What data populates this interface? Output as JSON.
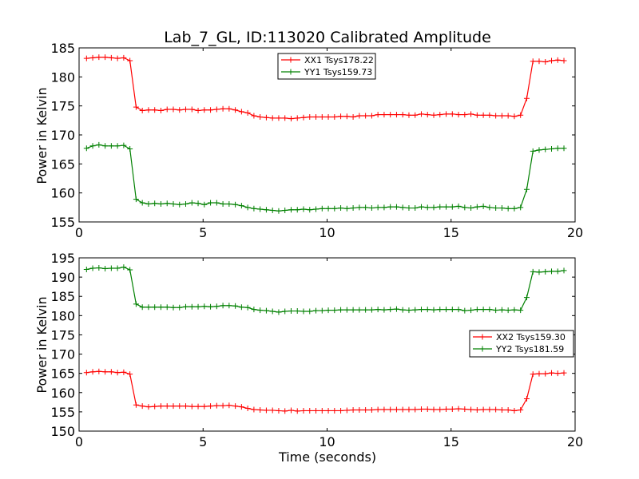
{
  "chart_data": {
    "title": "Lab_7_GL, ID:113020 Calibrated Amplitude",
    "xlabel": "Time (seconds)",
    "panels": [
      {
        "type": "line",
        "ylabel": "Power in Kelvin",
        "xlim": [
          0,
          20
        ],
        "ylim": [
          155,
          185
        ],
        "xticks": [
          "0",
          "5",
          "10",
          "15",
          "20"
        ],
        "yticks": [
          "155",
          "160",
          "165",
          "170",
          "175",
          "180",
          "185"
        ],
        "legend_position": "upper-center",
        "x": [
          0.3,
          0.55,
          0.8,
          1.05,
          1.3,
          1.55,
          1.8,
          2.05,
          2.3,
          2.55,
          2.8,
          3.05,
          3.3,
          3.55,
          3.8,
          4.05,
          4.3,
          4.55,
          4.8,
          5.05,
          5.3,
          5.55,
          5.8,
          6.05,
          6.3,
          6.55,
          6.8,
          7.05,
          7.3,
          7.55,
          7.8,
          8.05,
          8.3,
          8.55,
          8.8,
          9.05,
          9.3,
          9.55,
          9.8,
          10.05,
          10.3,
          10.55,
          10.8,
          11.05,
          11.3,
          11.55,
          11.8,
          12.05,
          12.3,
          12.55,
          12.8,
          13.05,
          13.3,
          13.55,
          13.8,
          14.05,
          14.3,
          14.55,
          14.8,
          15.05,
          15.3,
          15.55,
          15.8,
          16.05,
          16.3,
          16.55,
          16.8,
          17.05,
          17.3,
          17.55,
          17.8,
          18.05,
          18.3,
          18.55,
          18.8,
          19.05,
          19.3,
          19.55
        ],
        "series": [
          {
            "name": "XX1 Tsys178.22",
            "color": "#ff0000",
            "values": [
              183.2,
              183.3,
              183.4,
              183.4,
              183.3,
              183.2,
              183.3,
              182.8,
              174.8,
              174.2,
              174.3,
              174.3,
              174.2,
              174.4,
              174.4,
              174.3,
              174.4,
              174.4,
              174.2,
              174.3,
              174.3,
              174.4,
              174.5,
              174.5,
              174.3,
              174.0,
              173.8,
              173.3,
              173.1,
              173.0,
              172.9,
              172.9,
              172.9,
              172.8,
              172.9,
              173.0,
              173.1,
              173.1,
              173.1,
              173.1,
              173.1,
              173.2,
              173.2,
              173.1,
              173.3,
              173.3,
              173.3,
              173.5,
              173.5,
              173.5,
              173.5,
              173.5,
              173.4,
              173.4,
              173.6,
              173.5,
              173.4,
              173.5,
              173.6,
              173.6,
              173.5,
              173.5,
              173.6,
              173.4,
              173.4,
              173.4,
              173.3,
              173.3,
              173.3,
              173.2,
              173.4,
              176.3,
              182.7,
              182.7,
              182.6,
              182.8,
              182.9,
              182.8
            ]
          },
          {
            "name": "YY1 Tsys159.73",
            "color": "#008000",
            "values": [
              167.7,
              168.1,
              168.3,
              168.1,
              168.1,
              168.1,
              168.2,
              167.6,
              158.9,
              158.3,
              158.1,
              158.2,
              158.1,
              158.2,
              158.1,
              158.0,
              158.1,
              158.3,
              158.2,
              158.0,
              158.3,
              158.3,
              158.1,
              158.1,
              158.0,
              157.8,
              157.5,
              157.3,
              157.2,
              157.1,
              157.0,
              156.9,
              157.0,
              157.1,
              157.1,
              157.2,
              157.1,
              157.2,
              157.3,
              157.3,
              157.3,
              157.4,
              157.3,
              157.4,
              157.5,
              157.5,
              157.4,
              157.5,
              157.5,
              157.6,
              157.6,
              157.5,
              157.4,
              157.4,
              157.6,
              157.5,
              157.5,
              157.6,
              157.6,
              157.6,
              157.7,
              157.5,
              157.4,
              157.6,
              157.7,
              157.5,
              157.4,
              157.4,
              157.3,
              157.3,
              157.5,
              160.6,
              167.2,
              167.4,
              167.5,
              167.6,
              167.7,
              167.7
            ]
          }
        ]
      },
      {
        "type": "line",
        "ylabel": "Power in Kelvin",
        "xlim": [
          0,
          20
        ],
        "ylim": [
          150,
          195
        ],
        "xticks": [
          "0",
          "5",
          "10",
          "15",
          "20"
        ],
        "yticks": [
          "150",
          "155",
          "160",
          "165",
          "170",
          "175",
          "180",
          "185",
          "190",
          "195"
        ],
        "legend_position": "center-right",
        "x": [
          0.3,
          0.55,
          0.8,
          1.05,
          1.3,
          1.55,
          1.8,
          2.05,
          2.3,
          2.55,
          2.8,
          3.05,
          3.3,
          3.55,
          3.8,
          4.05,
          4.3,
          4.55,
          4.8,
          5.05,
          5.3,
          5.55,
          5.8,
          6.05,
          6.3,
          6.55,
          6.8,
          7.05,
          7.3,
          7.55,
          7.8,
          8.05,
          8.3,
          8.55,
          8.8,
          9.05,
          9.3,
          9.55,
          9.8,
          10.05,
          10.3,
          10.55,
          10.8,
          11.05,
          11.3,
          11.55,
          11.8,
          12.05,
          12.3,
          12.55,
          12.8,
          13.05,
          13.3,
          13.55,
          13.8,
          14.05,
          14.3,
          14.55,
          14.8,
          15.05,
          15.3,
          15.55,
          15.8,
          16.05,
          16.3,
          16.55,
          16.8,
          17.05,
          17.3,
          17.55,
          17.8,
          18.05,
          18.3,
          18.55,
          18.8,
          19.05,
          19.3,
          19.55
        ],
        "series": [
          {
            "name": "XX2 Tsys159.30",
            "color": "#ff0000",
            "values": [
              165.2,
              165.4,
              165.5,
              165.4,
              165.4,
              165.2,
              165.3,
              164.8,
              156.8,
              156.5,
              156.3,
              156.4,
              156.5,
              156.5,
              156.5,
              156.5,
              156.5,
              156.4,
              156.4,
              156.4,
              156.5,
              156.6,
              156.6,
              156.7,
              156.5,
              156.3,
              155.9,
              155.6,
              155.5,
              155.4,
              155.4,
              155.3,
              155.2,
              155.4,
              155.2,
              155.3,
              155.3,
              155.3,
              155.3,
              155.3,
              155.3,
              155.3,
              155.4,
              155.5,
              155.5,
              155.5,
              155.5,
              155.6,
              155.6,
              155.6,
              155.6,
              155.6,
              155.6,
              155.6,
              155.7,
              155.7,
              155.6,
              155.6,
              155.7,
              155.7,
              155.8,
              155.7,
              155.6,
              155.5,
              155.6,
              155.6,
              155.6,
              155.5,
              155.5,
              155.3,
              155.5,
              158.4,
              164.8,
              164.9,
              164.9,
              165.1,
              165.0,
              165.1
            ]
          },
          {
            "name": "YY2 Tsys181.59",
            "color": "#008000",
            "values": [
              192.0,
              192.3,
              192.4,
              192.2,
              192.3,
              192.3,
              192.6,
              191.9,
              183.0,
              182.2,
              182.2,
              182.2,
              182.2,
              182.2,
              182.1,
              182.1,
              182.3,
              182.3,
              182.3,
              182.4,
              182.3,
              182.4,
              182.6,
              182.6,
              182.5,
              182.2,
              182.1,
              181.6,
              181.4,
              181.3,
              181.1,
              180.9,
              181.1,
              181.2,
              181.2,
              181.1,
              181.1,
              181.3,
              181.3,
              181.4,
              181.4,
              181.5,
              181.5,
              181.5,
              181.5,
              181.5,
              181.5,
              181.6,
              181.5,
              181.6,
              181.7,
              181.5,
              181.4,
              181.5,
              181.6,
              181.6,
              181.5,
              181.6,
              181.6,
              181.6,
              181.6,
              181.3,
              181.4,
              181.6,
              181.6,
              181.6,
              181.4,
              181.5,
              181.4,
              181.5,
              181.4,
              184.7,
              191.4,
              191.3,
              191.4,
              191.5,
              191.5,
              191.7
            ]
          }
        ]
      }
    ]
  }
}
